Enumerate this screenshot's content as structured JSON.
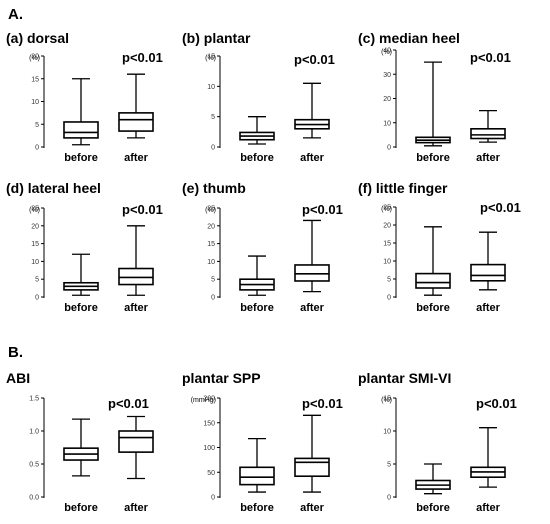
{
  "sections": [
    {
      "label": "A."
    },
    {
      "label": "B."
    }
  ],
  "chart_data": [
    {
      "type": "box",
      "title": "(a) dorsal",
      "ylabel": "(%)",
      "ylim": [
        0,
        20
      ],
      "yticks": [
        0,
        5,
        10,
        15,
        20
      ],
      "yticklabels": [
        "0",
        "5",
        "10",
        "15",
        "20"
      ],
      "categories": [
        "before",
        "after"
      ],
      "annotation": "p<0.01",
      "boxes": [
        {
          "min": 0.5,
          "q1": 2.0,
          "median": 3.2,
          "q3": 5.5,
          "max": 15.0
        },
        {
          "min": 2.0,
          "q1": 3.5,
          "median": 6.0,
          "q3": 7.5,
          "max": 16.0
        }
      ]
    },
    {
      "type": "box",
      "title": "(b) plantar",
      "ylabel": "(%)",
      "ylim": [
        0,
        15
      ],
      "yticks": [
        0,
        5,
        10,
        15
      ],
      "yticklabels": [
        "0",
        "5",
        "10",
        "15"
      ],
      "categories": [
        "before",
        "after"
      ],
      "annotation": "p<0.01",
      "boxes": [
        {
          "min": 0.5,
          "q1": 1.2,
          "median": 1.8,
          "q3": 2.4,
          "max": 5.0
        },
        {
          "min": 1.5,
          "q1": 3.0,
          "median": 3.7,
          "q3": 4.5,
          "max": 10.5
        }
      ]
    },
    {
      "type": "box",
      "title": "(c) median heel",
      "ylabel": "(%)",
      "ylim": [
        0,
        40
      ],
      "yticks": [
        0,
        10,
        20,
        30,
        40
      ],
      "yticklabels": [
        "0",
        "10",
        "20",
        "30",
        "40"
      ],
      "categories": [
        "before",
        "after"
      ],
      "annotation": "p<0.01",
      "boxes": [
        {
          "min": 0.5,
          "q1": 1.8,
          "median": 2.8,
          "q3": 4.0,
          "max": 35.0
        },
        {
          "min": 2.0,
          "q1": 3.5,
          "median": 5.0,
          "q3": 7.5,
          "max": 15.0
        }
      ]
    },
    {
      "type": "box",
      "title": "(d) lateral heel",
      "ylabel": "(%)",
      "ylim": [
        0,
        25
      ],
      "yticks": [
        0,
        5,
        10,
        15,
        20,
        25
      ],
      "yticklabels": [
        "0",
        "5",
        "10",
        "15",
        "20",
        "25"
      ],
      "categories": [
        "before",
        "after"
      ],
      "annotation": "p<0.01",
      "boxes": [
        {
          "min": 0.5,
          "q1": 2.0,
          "median": 3.0,
          "q3": 4.0,
          "max": 12.0
        },
        {
          "min": 0.5,
          "q1": 3.5,
          "median": 5.5,
          "q3": 8.0,
          "max": 20.0
        }
      ]
    },
    {
      "type": "box",
      "title": "(e) thumb",
      "ylabel": "(%)",
      "ylim": [
        0,
        25
      ],
      "yticks": [
        0,
        5,
        10,
        15,
        20,
        25
      ],
      "yticklabels": [
        "0",
        "5",
        "10",
        "15",
        "20",
        "25"
      ],
      "categories": [
        "before",
        "after"
      ],
      "annotation": "p<0.01",
      "boxes": [
        {
          "min": 0.5,
          "q1": 2.0,
          "median": 3.5,
          "q3": 5.0,
          "max": 11.5
        },
        {
          "min": 1.5,
          "q1": 4.5,
          "median": 6.5,
          "q3": 9.0,
          "max": 21.5
        }
      ]
    },
    {
      "type": "box",
      "title": "(f) little finger",
      "ylabel": "(%)",
      "ylim": [
        0,
        25
      ],
      "yticks": [
        0,
        5,
        10,
        15,
        20,
        25
      ],
      "yticklabels": [
        "0",
        "5",
        "10",
        "15",
        "20",
        "25"
      ],
      "categories": [
        "before",
        "after"
      ],
      "annotation": "p<0.01",
      "boxes": [
        {
          "min": 0.5,
          "q1": 2.5,
          "median": 4.0,
          "q3": 6.5,
          "max": 19.5
        },
        {
          "min": 2.0,
          "q1": 4.5,
          "median": 6.0,
          "q3": 9.0,
          "max": 18.0
        }
      ]
    },
    {
      "type": "box",
      "title": "ABI",
      "ylabel": "",
      "ylim": [
        0,
        1.5
      ],
      "yticks": [
        0,
        0.5,
        1.0,
        1.5
      ],
      "yticklabels": [
        "0.0",
        "0.5",
        "1.0",
        "1.5"
      ],
      "categories": [
        "before",
        "after"
      ],
      "annotation": "p<0.01",
      "boxes": [
        {
          "min": 0.32,
          "q1": 0.56,
          "median": 0.65,
          "q3": 0.74,
          "max": 1.18
        },
        {
          "min": 0.28,
          "q1": 0.68,
          "median": 0.9,
          "q3": 1.0,
          "max": 1.22
        }
      ]
    },
    {
      "type": "box",
      "title": "plantar SPP",
      "ylabel": "(mmHg)",
      "ylim": [
        0,
        200
      ],
      "yticks": [
        0,
        50,
        100,
        150,
        200
      ],
      "yticklabels": [
        "0",
        "50",
        "100",
        "150",
        "200"
      ],
      "categories": [
        "before",
        "after"
      ],
      "annotation": "p<0.01",
      "boxes": [
        {
          "min": 10,
          "q1": 25,
          "median": 40,
          "q3": 60,
          "max": 118
        },
        {
          "min": 10,
          "q1": 42,
          "median": 70,
          "q3": 78,
          "max": 165
        }
      ]
    },
    {
      "type": "box",
      "title": "plantar SMI-VI",
      "ylabel": "(%)",
      "ylim": [
        0,
        15
      ],
      "yticks": [
        0,
        5,
        10,
        15
      ],
      "yticklabels": [
        "0",
        "5",
        "10",
        "15"
      ],
      "categories": [
        "before",
        "after"
      ],
      "annotation": "p<0.01",
      "boxes": [
        {
          "min": 0.5,
          "q1": 1.2,
          "median": 1.8,
          "q3": 2.5,
          "max": 5.0
        },
        {
          "min": 1.5,
          "q1": 3.0,
          "median": 3.8,
          "q3": 4.5,
          "max": 10.5
        }
      ]
    }
  ]
}
